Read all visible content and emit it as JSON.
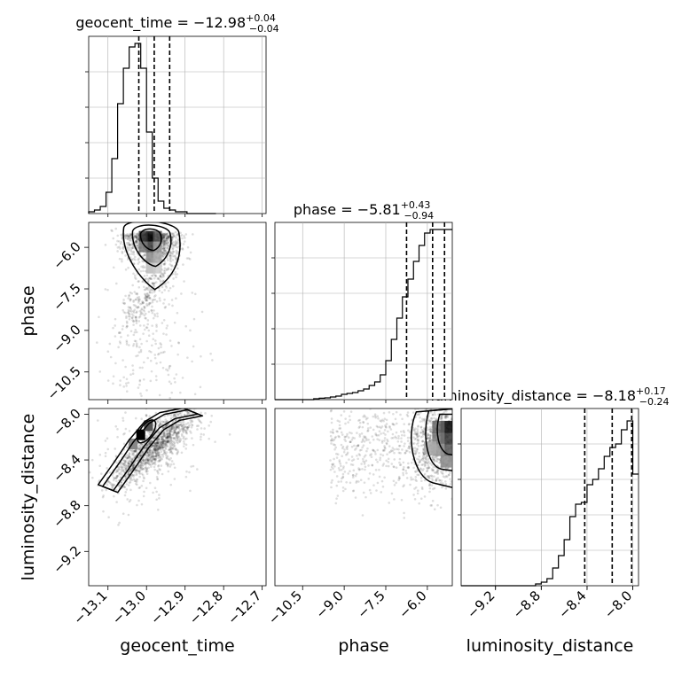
{
  "chart_data": {
    "type": "corner",
    "parameters": [
      "geocent_time",
      "phase",
      "luminosity_distance"
    ],
    "panels": [
      {
        "kind": "histogram",
        "param": "geocent_time",
        "title": {
          "label": "geocent_time",
          "median": "−12.98",
          "plus": "+0.04",
          "minus": "−0.04"
        },
        "xlim": [
          -13.15,
          -12.69
        ],
        "xticks": [
          -13.1,
          -13.0,
          -12.9,
          -12.8,
          -12.7
        ],
        "bin_edges": [
          -13.15,
          -13.135,
          -13.12,
          -13.105,
          -13.09,
          -13.075,
          -13.06,
          -13.045,
          -13.03,
          -13.015,
          -13.0,
          -12.985,
          -12.97,
          -12.955,
          -12.94,
          -12.925,
          -12.91,
          -12.895,
          -12.88,
          -12.865,
          -12.85,
          -12.835,
          -12.82
        ],
        "counts": [
          0.01,
          0.02,
          0.04,
          0.12,
          0.31,
          0.62,
          0.82,
          0.94,
          0.96,
          0.82,
          0.46,
          0.2,
          0.07,
          0.03,
          0.02,
          0.01,
          0.01,
          0,
          0,
          0,
          0,
          0
        ],
        "quantiles": [
          -13.02,
          -12.98,
          -12.94
        ]
      },
      {
        "kind": "histogram",
        "param": "phase",
        "title": {
          "label": "phase",
          "median": "−5.81",
          "plus": "+0.43",
          "minus": "−0.94"
        },
        "xlim": [
          -11.5,
          -5.1
        ],
        "xticks": [
          -10.5,
          -9.0,
          -7.5,
          -6.0
        ],
        "bin_edges": [
          -11.5,
          -11.3,
          -11.1,
          -10.9,
          -10.7,
          -10.5,
          -10.3,
          -10.1,
          -9.9,
          -9.7,
          -9.5,
          -9.3,
          -9.1,
          -8.9,
          -8.7,
          -8.5,
          -8.3,
          -8.1,
          -7.9,
          -7.7,
          -7.5,
          -7.3,
          -7.1,
          -6.9,
          -6.7,
          -6.5,
          -6.3,
          -6.1,
          -5.9,
          -5.7,
          -5.5,
          -5.3,
          -5.1
        ],
        "counts": [
          0,
          0,
          0,
          0,
          0,
          0,
          0,
          0.005,
          0.008,
          0.01,
          0.015,
          0.02,
          0.03,
          0.035,
          0.04,
          0.05,
          0.06,
          0.08,
          0.1,
          0.14,
          0.22,
          0.34,
          0.46,
          0.58,
          0.68,
          0.78,
          0.87,
          0.94,
          0.96,
          0.96,
          0.96,
          0.96
        ],
        "quantiles": [
          -6.75,
          -5.81,
          -5.38
        ]
      },
      {
        "kind": "histogram",
        "param": "luminosity_distance",
        "title": {
          "label": "luminosity_distance",
          "median": "−8.18",
          "plus": "+0.17",
          "minus": "−0.24"
        },
        "xlim": [
          -9.5,
          -7.95
        ],
        "xticks": [
          -9.2,
          -8.8,
          -8.4,
          -8.0
        ],
        "bin_edges": [
          -9.5,
          -9.45,
          -9.4,
          -9.35,
          -9.3,
          -9.25,
          -9.2,
          -9.15,
          -9.1,
          -9.05,
          -9.0,
          -8.95,
          -8.9,
          -8.85,
          -8.8,
          -8.75,
          -8.7,
          -8.65,
          -8.6,
          -8.55,
          -8.5,
          -8.45,
          -8.4,
          -8.35,
          -8.3,
          -8.25,
          -8.2,
          -8.15,
          -8.1,
          -8.05,
          -8.0,
          -7.95
        ],
        "counts": [
          0,
          0,
          0,
          0,
          0,
          0,
          0,
          0,
          0,
          0,
          0,
          0,
          0,
          0.01,
          0.02,
          0.04,
          0.1,
          0.17,
          0.26,
          0.39,
          0.46,
          0.47,
          0.57,
          0.6,
          0.66,
          0.73,
          0.78,
          0.8,
          0.88,
          0.93,
          0.63
        ],
        "quantiles": [
          -8.42,
          -8.18,
          -8.01
        ]
      },
      {
        "kind": "density2d",
        "x": "geocent_time",
        "y": "phase",
        "xlim": [
          -13.15,
          -12.69
        ],
        "ylim": [
          -11.5,
          -5.1
        ],
        "yticks": [
          -10.5,
          -9.0,
          -7.5,
          -6.0
        ],
        "mode": [
          -12.99,
          -5.6
        ]
      },
      {
        "kind": "density2d",
        "x": "geocent_time",
        "y": "luminosity_distance",
        "xlim": [
          -13.15,
          -12.69
        ],
        "ylim": [
          -9.5,
          -7.95
        ],
        "yticks": [
          -9.2,
          -8.8,
          -8.4,
          -8.0
        ],
        "mode": [
          -13.01,
          -8.18
        ]
      },
      {
        "kind": "density2d",
        "x": "phase",
        "y": "luminosity_distance",
        "xlim": [
          -11.5,
          -5.1
        ],
        "ylim": [
          -9.5,
          -7.95
        ],
        "mode": [
          -5.3,
          -8.15
        ]
      }
    ],
    "grid": true,
    "style": {
      "hist_color": "#000000",
      "quantile_color": "#000000",
      "scatter_color": "#000000",
      "grid_color": "#b0b0b0"
    }
  }
}
